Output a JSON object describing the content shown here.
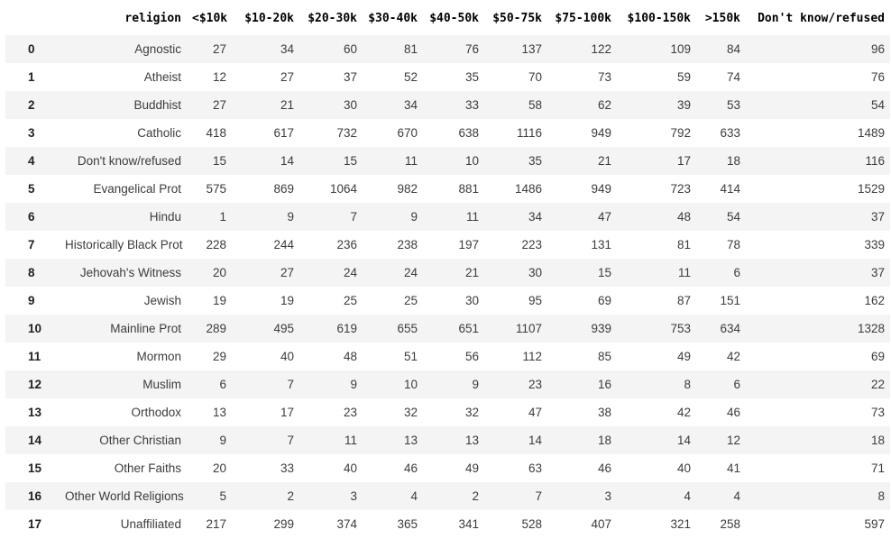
{
  "table": {
    "index_header": "",
    "columns": [
      "religion",
      "<$10k",
      "$10-20k",
      "$20-30k",
      "$30-40k",
      "$40-50k",
      "$50-75k",
      "$75-100k",
      "$100-150k",
      ">150k",
      "Don't know/refused"
    ],
    "rows": [
      {
        "index": "0",
        "religion": "Agnostic",
        "values": [
          27,
          34,
          60,
          81,
          76,
          137,
          122,
          109,
          84,
          96
        ]
      },
      {
        "index": "1",
        "religion": "Atheist",
        "values": [
          12,
          27,
          37,
          52,
          35,
          70,
          73,
          59,
          74,
          76
        ]
      },
      {
        "index": "2",
        "religion": "Buddhist",
        "values": [
          27,
          21,
          30,
          34,
          33,
          58,
          62,
          39,
          53,
          54
        ]
      },
      {
        "index": "3",
        "religion": "Catholic",
        "values": [
          418,
          617,
          732,
          670,
          638,
          1116,
          949,
          792,
          633,
          1489
        ]
      },
      {
        "index": "4",
        "religion": "Don't know/refused",
        "values": [
          15,
          14,
          15,
          11,
          10,
          35,
          21,
          17,
          18,
          116
        ]
      },
      {
        "index": "5",
        "religion": "Evangelical Prot",
        "values": [
          575,
          869,
          1064,
          982,
          881,
          1486,
          949,
          723,
          414,
          1529
        ]
      },
      {
        "index": "6",
        "religion": "Hindu",
        "values": [
          1,
          9,
          7,
          9,
          11,
          34,
          47,
          48,
          54,
          37
        ]
      },
      {
        "index": "7",
        "religion": "Historically Black Prot",
        "values": [
          228,
          244,
          236,
          238,
          197,
          223,
          131,
          81,
          78,
          339
        ]
      },
      {
        "index": "8",
        "religion": "Jehovah's Witness",
        "values": [
          20,
          27,
          24,
          24,
          21,
          30,
          15,
          11,
          6,
          37
        ]
      },
      {
        "index": "9",
        "religion": "Jewish",
        "values": [
          19,
          19,
          25,
          25,
          30,
          95,
          69,
          87,
          151,
          162
        ]
      },
      {
        "index": "10",
        "religion": "Mainline Prot",
        "values": [
          289,
          495,
          619,
          655,
          651,
          1107,
          939,
          753,
          634,
          1328
        ]
      },
      {
        "index": "11",
        "religion": "Mormon",
        "values": [
          29,
          40,
          48,
          51,
          56,
          112,
          85,
          49,
          42,
          69
        ]
      },
      {
        "index": "12",
        "religion": "Muslim",
        "values": [
          6,
          7,
          9,
          10,
          9,
          23,
          16,
          8,
          6,
          22
        ]
      },
      {
        "index": "13",
        "religion": "Orthodox",
        "values": [
          13,
          17,
          23,
          32,
          32,
          47,
          38,
          42,
          46,
          73
        ]
      },
      {
        "index": "14",
        "religion": "Other Christian",
        "values": [
          9,
          7,
          11,
          13,
          13,
          14,
          18,
          14,
          12,
          18
        ]
      },
      {
        "index": "15",
        "religion": "Other Faiths",
        "values": [
          20,
          33,
          40,
          46,
          49,
          63,
          46,
          40,
          41,
          71
        ]
      },
      {
        "index": "16",
        "religion": "Other World Religions",
        "values": [
          5,
          2,
          3,
          4,
          2,
          7,
          3,
          4,
          4,
          8
        ]
      },
      {
        "index": "17",
        "religion": "Unaffiliated",
        "values": [
          217,
          299,
          374,
          365,
          341,
          528,
          407,
          321,
          258,
          597
        ]
      }
    ]
  },
  "colors": {
    "stripe": "#f4f4f4",
    "header_text": "#000000",
    "cell_text": "#3c3c3c",
    "index_text": "#222222",
    "background": "#ffffff"
  }
}
